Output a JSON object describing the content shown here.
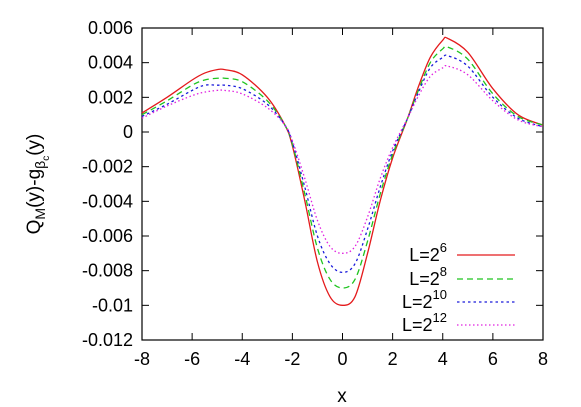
{
  "chart_data": {
    "type": "line",
    "xlabel": "x",
    "ylabel": "Q_M(y)-g_{β_c}(y)",
    "ylabel_parts": {
      "q": "Q",
      "m": "M",
      "mid": "(y)-g",
      "beta": "β",
      "c": "c",
      "end": "(y)"
    },
    "xlim": [
      -8,
      8
    ],
    "ylim": [
      -0.012,
      0.006
    ],
    "grid": false,
    "legend_position": "lower-right",
    "x_ticks": [
      {
        "value": -8,
        "label": "-8"
      },
      {
        "value": -6,
        "label": "-6"
      },
      {
        "value": -4,
        "label": "-4"
      },
      {
        "value": -2,
        "label": "-2"
      },
      {
        "value": 0,
        "label": "0"
      },
      {
        "value": 2,
        "label": "2"
      },
      {
        "value": 4,
        "label": "4"
      },
      {
        "value": 6,
        "label": "6"
      },
      {
        "value": 8,
        "label": "8"
      }
    ],
    "y_ticks": [
      {
        "value": 0.006,
        "label": "0.006"
      },
      {
        "value": 0.004,
        "label": "0.004"
      },
      {
        "value": 0.002,
        "label": "0.002"
      },
      {
        "value": 0,
        "label": "0"
      },
      {
        "value": -0.002,
        "label": "-0.002"
      },
      {
        "value": -0.004,
        "label": "-0.004"
      },
      {
        "value": -0.006,
        "label": "-0.006"
      },
      {
        "value": -0.008,
        "label": "-0.008"
      },
      {
        "value": -0.01,
        "label": "-0.01"
      },
      {
        "value": -0.012,
        "label": "-0.012"
      }
    ],
    "x": [
      -8,
      -7,
      -6,
      -5.5,
      -5,
      -4.7,
      -4,
      -3,
      -2.3,
      -2,
      -1.5,
      -1,
      -0.5,
      0,
      0.5,
      1,
      1.5,
      2,
      2.6,
      3,
      3.5,
      4,
      4.2,
      5,
      6,
      7,
      8
    ],
    "series": [
      {
        "name": "L=2^6",
        "base": "L=2",
        "exp": "6",
        "color": "#e41a1c",
        "dash": "",
        "values": [
          0.0011,
          0.002,
          0.003,
          0.0034,
          0.0036,
          0.0036,
          0.0033,
          0.002,
          0.0004,
          -0.0008,
          -0.004,
          -0.0075,
          -0.0095,
          -0.01,
          -0.0095,
          -0.007,
          -0.004,
          -0.0015,
          0.0008,
          0.0025,
          0.0043,
          0.0053,
          0.0054,
          0.0046,
          0.0025,
          0.001,
          0.0004
        ]
      },
      {
        "name": "L=2^8",
        "base": "L=2",
        "exp": "8",
        "color": "#1fc41f",
        "dash": "6,4",
        "values": [
          0.001,
          0.0018,
          0.0027,
          0.003,
          0.0031,
          0.0031,
          0.0029,
          0.0018,
          0.0004,
          -0.0007,
          -0.0036,
          -0.0067,
          -0.0085,
          -0.009,
          -0.0085,
          -0.0063,
          -0.0036,
          -0.0013,
          0.0008,
          0.0023,
          0.004,
          0.0048,
          0.0049,
          0.0042,
          0.0022,
          0.0009,
          0.0004
        ]
      },
      {
        "name": "L=2^10",
        "base": "L=2",
        "exp": "10",
        "color": "#1a1adb",
        "dash": "2.5,3",
        "values": [
          0.0009,
          0.0016,
          0.0024,
          0.0027,
          0.0027,
          0.0027,
          0.0025,
          0.0016,
          0.0004,
          -0.0006,
          -0.0032,
          -0.006,
          -0.0076,
          -0.0081,
          -0.0076,
          -0.0056,
          -0.0032,
          -0.0011,
          0.0008,
          0.0022,
          0.0037,
          0.0043,
          0.0044,
          0.0038,
          0.002,
          0.0008,
          0.0003
        ]
      },
      {
        "name": "L=2^12",
        "base": "L=2",
        "exp": "12",
        "color": "#e020e0",
        "dash": "1.5,2.5",
        "values": [
          0.0008,
          0.0015,
          0.0021,
          0.0023,
          0.0024,
          0.0024,
          0.0022,
          0.0014,
          0.0004,
          -0.0005,
          -0.0027,
          -0.0051,
          -0.0066,
          -0.007,
          -0.0066,
          -0.0049,
          -0.0027,
          -0.0009,
          0.0008,
          0.002,
          0.0032,
          0.0037,
          0.0038,
          0.0033,
          0.0018,
          0.0007,
          0.0003
        ]
      }
    ]
  }
}
